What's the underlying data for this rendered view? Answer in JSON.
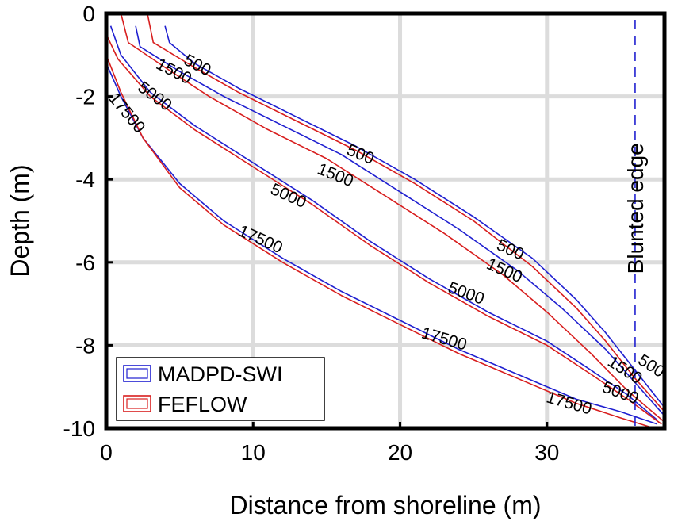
{
  "chart_data": {
    "type": "line",
    "xlabel": "Distance from shoreline (m)",
    "ylabel": "Depth (m)",
    "xlim": [
      0,
      38
    ],
    "ylim": [
      -10,
      0
    ],
    "xticks": [
      0,
      10,
      20,
      30
    ],
    "yticks": [
      0,
      -2,
      -4,
      -6,
      -8,
      -10
    ],
    "grid": true,
    "legend_position": "bottom-left",
    "legend": [
      {
        "label": "MADPD-SWI",
        "color": "#1f1fd0"
      },
      {
        "label": "FEFLOW",
        "color": "#d81e1e"
      }
    ],
    "series": [
      {
        "model": "MADPD-SWI",
        "contour": "500",
        "color": "#1f1fd0",
        "x": [
          4.0,
          4.3,
          6.0,
          9.0,
          13.0,
          17.0,
          21.0,
          25.0,
          29.0,
          32.0,
          34.0,
          36.0,
          38.0
        ],
        "y": [
          -0.3,
          -0.7,
          -1.2,
          -1.8,
          -2.5,
          -3.2,
          -4.0,
          -4.9,
          -5.9,
          -6.9,
          -7.7,
          -8.6,
          -9.5
        ]
      },
      {
        "model": "FEFLOW",
        "contour": "500",
        "color": "#d81e1e",
        "x": [
          2.8,
          3.2,
          6.0,
          9.0,
          13.0,
          17.0,
          21.0,
          25.0,
          29.0,
          32.0,
          34.0,
          36.0,
          38.0
        ],
        "y": [
          0.0,
          -0.7,
          -1.3,
          -1.9,
          -2.6,
          -3.3,
          -4.1,
          -5.0,
          -6.1,
          -7.1,
          -7.9,
          -8.8,
          -9.6
        ]
      },
      {
        "model": "MADPD-SWI",
        "contour": "1500",
        "color": "#1f1fd0",
        "x": [
          2.0,
          2.3,
          5.0,
          8.0,
          12.0,
          16.0,
          20.0,
          24.0,
          28.0,
          31.0,
          34.0,
          36.0,
          38.0
        ],
        "y": [
          -0.3,
          -0.8,
          -1.4,
          -2.0,
          -2.7,
          -3.4,
          -4.3,
          -5.2,
          -6.2,
          -7.1,
          -8.1,
          -8.9,
          -9.7
        ]
      },
      {
        "model": "FEFLOW",
        "contour": "1500",
        "color": "#d81e1e",
        "x": [
          1.0,
          1.5,
          4.0,
          7.0,
          11.0,
          15.0,
          19.0,
          23.0,
          27.0,
          30.0,
          33.0,
          35.5,
          38.0
        ],
        "y": [
          0.0,
          -0.7,
          -1.3,
          -2.0,
          -2.8,
          -3.5,
          -4.4,
          -5.3,
          -6.3,
          -7.2,
          -8.2,
          -9.1,
          -9.85
        ]
      },
      {
        "model": "MADPD-SWI",
        "contour": "5000",
        "color": "#1f1fd0",
        "x": [
          0.3,
          1.0,
          3.0,
          6.0,
          10.0,
          14.0,
          18.0,
          22.0,
          26.0,
          30.0,
          33.0,
          35.5,
          37.5
        ],
        "y": [
          -0.3,
          -1.0,
          -1.9,
          -2.7,
          -3.6,
          -4.5,
          -5.5,
          -6.4,
          -7.2,
          -7.9,
          -8.6,
          -9.2,
          -9.8
        ]
      },
      {
        "model": "FEFLOW",
        "contour": "5000",
        "color": "#d81e1e",
        "x": [
          0.0,
          0.8,
          3.0,
          6.0,
          10.0,
          14.0,
          18.0,
          22.0,
          26.0,
          30.0,
          33.0,
          35.5,
          37.8
        ],
        "y": [
          -0.5,
          -1.1,
          -2.0,
          -2.8,
          -3.7,
          -4.6,
          -5.6,
          -6.5,
          -7.3,
          -8.0,
          -8.7,
          -9.3,
          -9.9
        ]
      },
      {
        "model": "MADPD-SWI",
        "contour": "17500",
        "color": "#1f1fd0",
        "x": [
          0.0,
          1.0,
          2.5,
          5.0,
          8.0,
          12.0,
          16.0,
          20.0,
          24.0,
          28.0,
          32.0,
          35.0,
          37.5
        ],
        "y": [
          -1.2,
          -2.0,
          -3.0,
          -4.1,
          -5.0,
          -5.9,
          -6.7,
          -7.4,
          -8.1,
          -8.7,
          -9.3,
          -9.6,
          -9.9
        ]
      },
      {
        "model": "FEFLOW",
        "contour": "17500",
        "color": "#d81e1e",
        "x": [
          0.0,
          1.0,
          2.5,
          5.0,
          8.0,
          12.0,
          16.0,
          20.0,
          24.0,
          28.0,
          32.0,
          35.0,
          37.3
        ],
        "y": [
          -1.0,
          -1.9,
          -3.0,
          -4.2,
          -5.1,
          -6.0,
          -6.8,
          -7.5,
          -8.2,
          -8.8,
          -9.4,
          -9.75,
          -10.0
        ]
      }
    ],
    "contour_labels": [
      {
        "text": "500",
        "x": 6.2,
        "y": -1.25,
        "angle": 27
      },
      {
        "text": "1500",
        "x": 4.6,
        "y": -1.4,
        "angle": 27
      },
      {
        "text": "5000",
        "x": 3.3,
        "y": -2.0,
        "angle": 36
      },
      {
        "text": "17500",
        "x": 1.4,
        "y": -2.4,
        "angle": 50
      },
      {
        "text": "500",
        "x": 17.3,
        "y": -3.4,
        "angle": 22
      },
      {
        "text": "1500",
        "x": 15.6,
        "y": -3.9,
        "angle": 22
      },
      {
        "text": "5000",
        "x": 12.4,
        "y": -4.4,
        "angle": 24
      },
      {
        "text": "17500",
        "x": 10.5,
        "y": -5.45,
        "angle": 24
      },
      {
        "text": "500",
        "x": 27.5,
        "y": -5.7,
        "angle": 24
      },
      {
        "text": "1500",
        "x": 27.1,
        "y": -6.2,
        "angle": 24
      },
      {
        "text": "5000",
        "x": 24.5,
        "y": -6.75,
        "angle": 20
      },
      {
        "text": "17500",
        "x": 23.0,
        "y": -7.85,
        "angle": 16
      },
      {
        "text": "500",
        "x": 37.1,
        "y": -8.5,
        "angle": 33
      },
      {
        "text": "1500",
        "x": 35.3,
        "y": -8.6,
        "angle": 33
      },
      {
        "text": "5000",
        "x": 35.0,
        "y": -9.15,
        "angle": 20
      },
      {
        "text": "17500",
        "x": 31.5,
        "y": -9.4,
        "angle": 16
      }
    ],
    "vertical_line": {
      "x": 36.0,
      "label": "Blunted edge",
      "color": "#1f1fd0",
      "style": "dashed"
    }
  }
}
